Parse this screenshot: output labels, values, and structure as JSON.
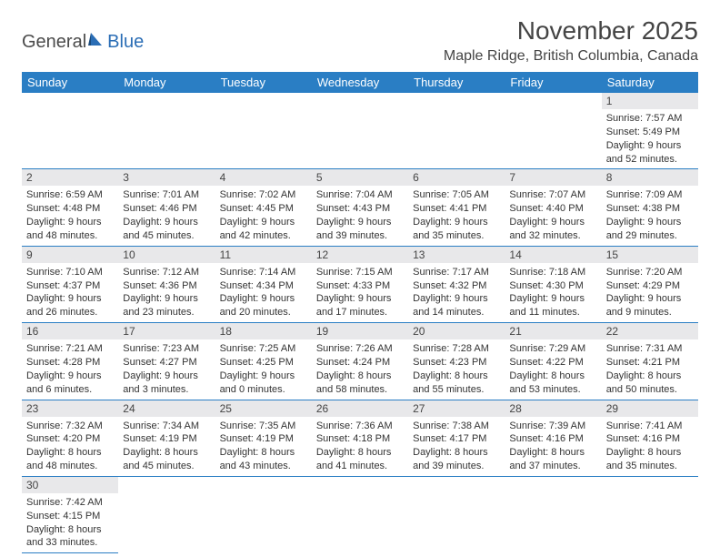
{
  "logo": {
    "general": "General",
    "blue": "Blue"
  },
  "title": "November 2025",
  "location": "Maple Ridge, British Columbia, Canada",
  "colors": {
    "headerBg": "#2a7ec4",
    "headerText": "#ffffff",
    "dayBg": "#e8e8ea",
    "border": "#2a7ec4"
  },
  "weekdays": [
    "Sunday",
    "Monday",
    "Tuesday",
    "Wednesday",
    "Thursday",
    "Friday",
    "Saturday"
  ],
  "days": {
    "1": {
      "sunrise": "Sunrise: 7:57 AM",
      "sunset": "Sunset: 5:49 PM",
      "daylight1": "Daylight: 9 hours",
      "daylight2": "and 52 minutes."
    },
    "2": {
      "sunrise": "Sunrise: 6:59 AM",
      "sunset": "Sunset: 4:48 PM",
      "daylight1": "Daylight: 9 hours",
      "daylight2": "and 48 minutes."
    },
    "3": {
      "sunrise": "Sunrise: 7:01 AM",
      "sunset": "Sunset: 4:46 PM",
      "daylight1": "Daylight: 9 hours",
      "daylight2": "and 45 minutes."
    },
    "4": {
      "sunrise": "Sunrise: 7:02 AM",
      "sunset": "Sunset: 4:45 PM",
      "daylight1": "Daylight: 9 hours",
      "daylight2": "and 42 minutes."
    },
    "5": {
      "sunrise": "Sunrise: 7:04 AM",
      "sunset": "Sunset: 4:43 PM",
      "daylight1": "Daylight: 9 hours",
      "daylight2": "and 39 minutes."
    },
    "6": {
      "sunrise": "Sunrise: 7:05 AM",
      "sunset": "Sunset: 4:41 PM",
      "daylight1": "Daylight: 9 hours",
      "daylight2": "and 35 minutes."
    },
    "7": {
      "sunrise": "Sunrise: 7:07 AM",
      "sunset": "Sunset: 4:40 PM",
      "daylight1": "Daylight: 9 hours",
      "daylight2": "and 32 minutes."
    },
    "8": {
      "sunrise": "Sunrise: 7:09 AM",
      "sunset": "Sunset: 4:38 PM",
      "daylight1": "Daylight: 9 hours",
      "daylight2": "and 29 minutes."
    },
    "9": {
      "sunrise": "Sunrise: 7:10 AM",
      "sunset": "Sunset: 4:37 PM",
      "daylight1": "Daylight: 9 hours",
      "daylight2": "and 26 minutes."
    },
    "10": {
      "sunrise": "Sunrise: 7:12 AM",
      "sunset": "Sunset: 4:36 PM",
      "daylight1": "Daylight: 9 hours",
      "daylight2": "and 23 minutes."
    },
    "11": {
      "sunrise": "Sunrise: 7:14 AM",
      "sunset": "Sunset: 4:34 PM",
      "daylight1": "Daylight: 9 hours",
      "daylight2": "and 20 minutes."
    },
    "12": {
      "sunrise": "Sunrise: 7:15 AM",
      "sunset": "Sunset: 4:33 PM",
      "daylight1": "Daylight: 9 hours",
      "daylight2": "and 17 minutes."
    },
    "13": {
      "sunrise": "Sunrise: 7:17 AM",
      "sunset": "Sunset: 4:32 PM",
      "daylight1": "Daylight: 9 hours",
      "daylight2": "and 14 minutes."
    },
    "14": {
      "sunrise": "Sunrise: 7:18 AM",
      "sunset": "Sunset: 4:30 PM",
      "daylight1": "Daylight: 9 hours",
      "daylight2": "and 11 minutes."
    },
    "15": {
      "sunrise": "Sunrise: 7:20 AM",
      "sunset": "Sunset: 4:29 PM",
      "daylight1": "Daylight: 9 hours",
      "daylight2": "and 9 minutes."
    },
    "16": {
      "sunrise": "Sunrise: 7:21 AM",
      "sunset": "Sunset: 4:28 PM",
      "daylight1": "Daylight: 9 hours",
      "daylight2": "and 6 minutes."
    },
    "17": {
      "sunrise": "Sunrise: 7:23 AM",
      "sunset": "Sunset: 4:27 PM",
      "daylight1": "Daylight: 9 hours",
      "daylight2": "and 3 minutes."
    },
    "18": {
      "sunrise": "Sunrise: 7:25 AM",
      "sunset": "Sunset: 4:25 PM",
      "daylight1": "Daylight: 9 hours",
      "daylight2": "and 0 minutes."
    },
    "19": {
      "sunrise": "Sunrise: 7:26 AM",
      "sunset": "Sunset: 4:24 PM",
      "daylight1": "Daylight: 8 hours",
      "daylight2": "and 58 minutes."
    },
    "20": {
      "sunrise": "Sunrise: 7:28 AM",
      "sunset": "Sunset: 4:23 PM",
      "daylight1": "Daylight: 8 hours",
      "daylight2": "and 55 minutes."
    },
    "21": {
      "sunrise": "Sunrise: 7:29 AM",
      "sunset": "Sunset: 4:22 PM",
      "daylight1": "Daylight: 8 hours",
      "daylight2": "and 53 minutes."
    },
    "22": {
      "sunrise": "Sunrise: 7:31 AM",
      "sunset": "Sunset: 4:21 PM",
      "daylight1": "Daylight: 8 hours",
      "daylight2": "and 50 minutes."
    },
    "23": {
      "sunrise": "Sunrise: 7:32 AM",
      "sunset": "Sunset: 4:20 PM",
      "daylight1": "Daylight: 8 hours",
      "daylight2": "and 48 minutes."
    },
    "24": {
      "sunrise": "Sunrise: 7:34 AM",
      "sunset": "Sunset: 4:19 PM",
      "daylight1": "Daylight: 8 hours",
      "daylight2": "and 45 minutes."
    },
    "25": {
      "sunrise": "Sunrise: 7:35 AM",
      "sunset": "Sunset: 4:19 PM",
      "daylight1": "Daylight: 8 hours",
      "daylight2": "and 43 minutes."
    },
    "26": {
      "sunrise": "Sunrise: 7:36 AM",
      "sunset": "Sunset: 4:18 PM",
      "daylight1": "Daylight: 8 hours",
      "daylight2": "and 41 minutes."
    },
    "27": {
      "sunrise": "Sunrise: 7:38 AM",
      "sunset": "Sunset: 4:17 PM",
      "daylight1": "Daylight: 8 hours",
      "daylight2": "and 39 minutes."
    },
    "28": {
      "sunrise": "Sunrise: 7:39 AM",
      "sunset": "Sunset: 4:16 PM",
      "daylight1": "Daylight: 8 hours",
      "daylight2": "and 37 minutes."
    },
    "29": {
      "sunrise": "Sunrise: 7:41 AM",
      "sunset": "Sunset: 4:16 PM",
      "daylight1": "Daylight: 8 hours",
      "daylight2": "and 35 minutes."
    },
    "30": {
      "sunrise": "Sunrise: 7:42 AM",
      "sunset": "Sunset: 4:15 PM",
      "daylight1": "Daylight: 8 hours",
      "daylight2": "and 33 minutes."
    }
  },
  "layout": {
    "firstDayColumn": 6,
    "totalDays": 30
  }
}
